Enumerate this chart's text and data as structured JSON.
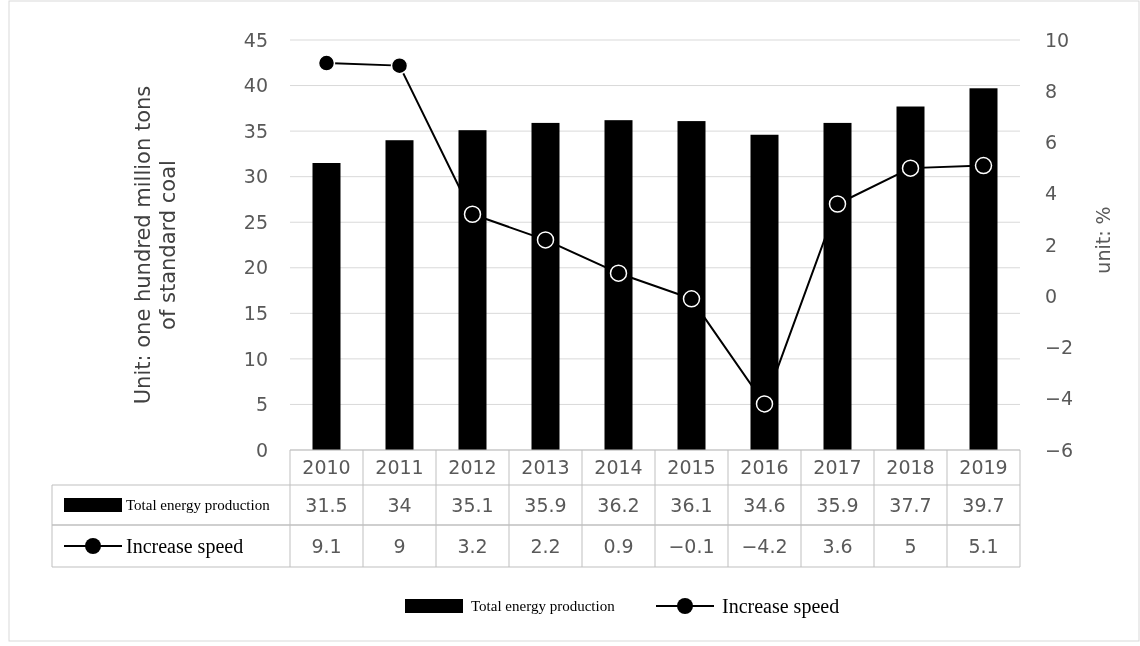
{
  "chart_data": {
    "type": "bar",
    "categories": [
      "2010",
      "2011",
      "2012",
      "2013",
      "2014",
      "2015",
      "2016",
      "2017",
      "2018",
      "2019"
    ],
    "series": [
      {
        "name": "Total energy production",
        "color": "#000000",
        "values": [
          31.5,
          34,
          35.1,
          35.9,
          36.2,
          36.1,
          34.6,
          35.9,
          37.7,
          39.7
        ]
      },
      {
        "name": "Increase speed",
        "type": "line",
        "axis": "y2",
        "color": "#000000",
        "marker": "circle",
        "values": [
          9.1,
          9,
          3.2,
          2.2,
          0.9,
          -0.1,
          -4.2,
          3.6,
          5,
          5.1
        ]
      }
    ],
    "ylabel": "Unit: one hundred million tons of standard coal",
    "y2label": "unit: %",
    "ylim": [
      0,
      45
    ],
    "yticks": [
      0,
      5,
      10,
      15,
      20,
      25,
      30,
      35,
      40,
      45
    ],
    "y2lim": [
      -6,
      10
    ],
    "y2ticks": [
      -6,
      -4,
      -2,
      0,
      2,
      4,
      6,
      8,
      10
    ],
    "grid": "y",
    "legend": "bottom",
    "data_labels": true
  }
}
